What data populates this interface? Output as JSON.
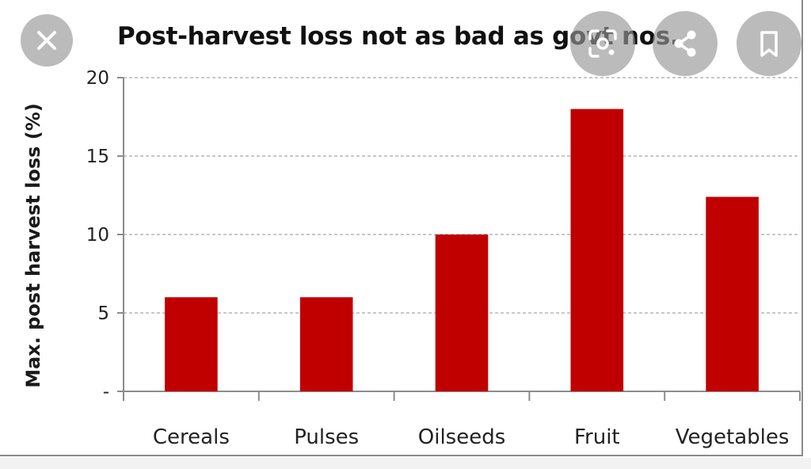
{
  "chart_data": {
    "type": "bar",
    "title": "Post-harvest loss not as bad as govt nos.",
    "ylabel": "Max. post harvest loss (%)",
    "xlabel": "",
    "categories": [
      "Cereals",
      "Pulses",
      "Oilseeds",
      "Fruit",
      "Vegetables"
    ],
    "values": [
      6,
      6,
      10,
      18,
      12.4
    ],
    "ylim": [
      0,
      20
    ],
    "yticks": [
      0,
      5,
      10,
      15,
      20
    ],
    "ytick_labels": [
      "-",
      "5",
      "10",
      "15",
      "20"
    ],
    "grid": "horizontal dashed",
    "bar_color": "#c00000"
  },
  "overlay": {
    "close_icon": "close-icon",
    "lens_icon": "lens-icon",
    "share_icon": "share-icon",
    "bookmark_icon": "bookmark-icon"
  }
}
